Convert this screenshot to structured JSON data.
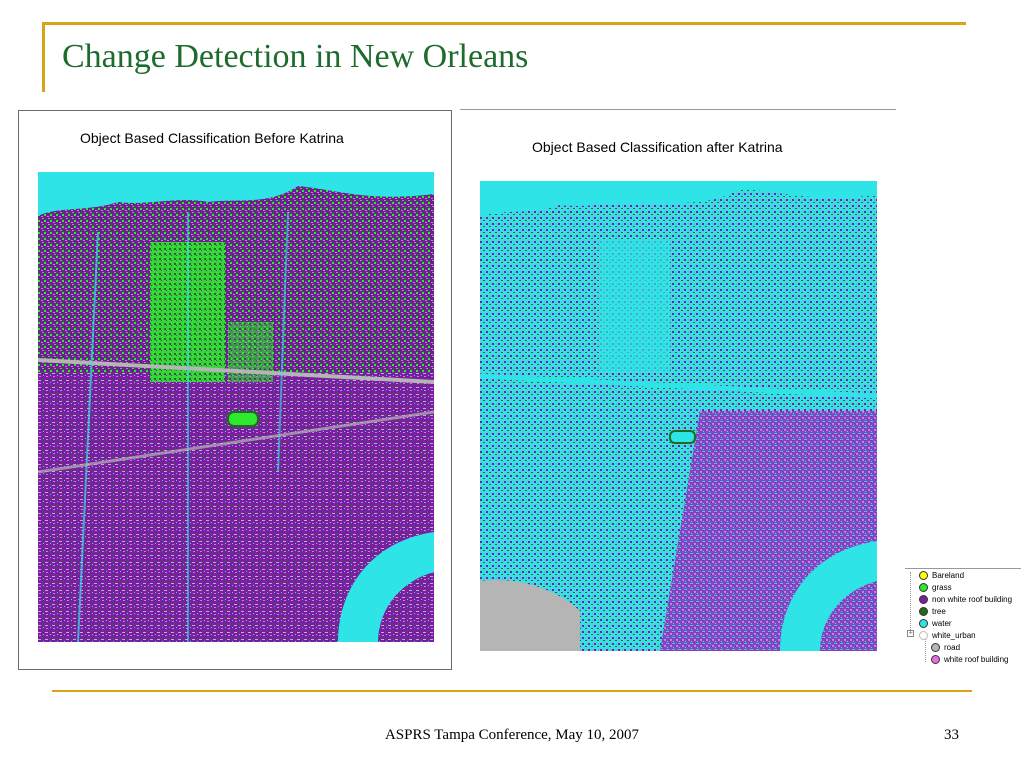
{
  "slide": {
    "title": "Change Detection in New Orleans",
    "footer": "ASPRS Tampa Conference, May 10, 2007",
    "page_number": "33"
  },
  "maps": {
    "before_caption": "Object Based Classification Before Katrina",
    "after_caption": "Object Based Classification after Katrina"
  },
  "legend": {
    "items": [
      {
        "label": "Bareland",
        "color": "#ffff00"
      },
      {
        "label": "grass",
        "color": "#2ee82e"
      },
      {
        "label": "non white roof building",
        "color": "#7a1fa3"
      },
      {
        "label": "tree",
        "color": "#1f6b1f"
      },
      {
        "label": "water",
        "color": "#2fe4e6"
      },
      {
        "label": "white_urban",
        "color": "#ffffff"
      },
      {
        "label": "road",
        "color": "#b5b5b5"
      },
      {
        "label": "white roof building",
        "color": "#e86ee0"
      }
    ]
  },
  "colors": {
    "accent_gold": "#d9a21b",
    "title_green": "#1e6b2e"
  }
}
